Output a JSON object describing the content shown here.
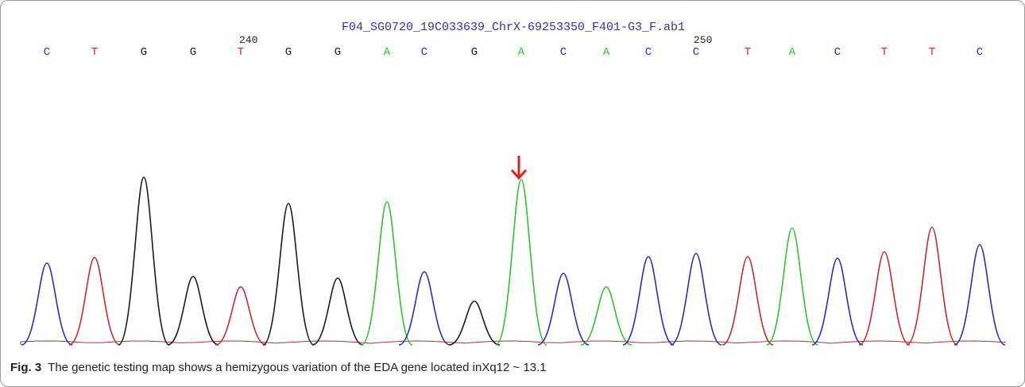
{
  "trace": {
    "title": "F04_SG0720_19C033639_ChrX-69253350_F401-G3_F.ab1",
    "bases": [
      "C",
      "T",
      "G",
      "G",
      "T",
      "G",
      "G",
      "A",
      "C",
      "G",
      "A",
      "C",
      "A",
      "C",
      "C",
      "T",
      "A",
      "C",
      "T",
      "T",
      "C"
    ],
    "base_colors": {
      "A": "#2fc42f",
      "C": "#2a2ac8",
      "G": "#1a1a1a",
      "T": "#cc2a2a"
    },
    "positions": [
      240,
      250
    ]
  },
  "caption": {
    "label": "Fig. 3",
    "text": "The genetic testing map shows a hemizygous variation of the EDA gene located inXq12 ~ 13.1"
  }
}
